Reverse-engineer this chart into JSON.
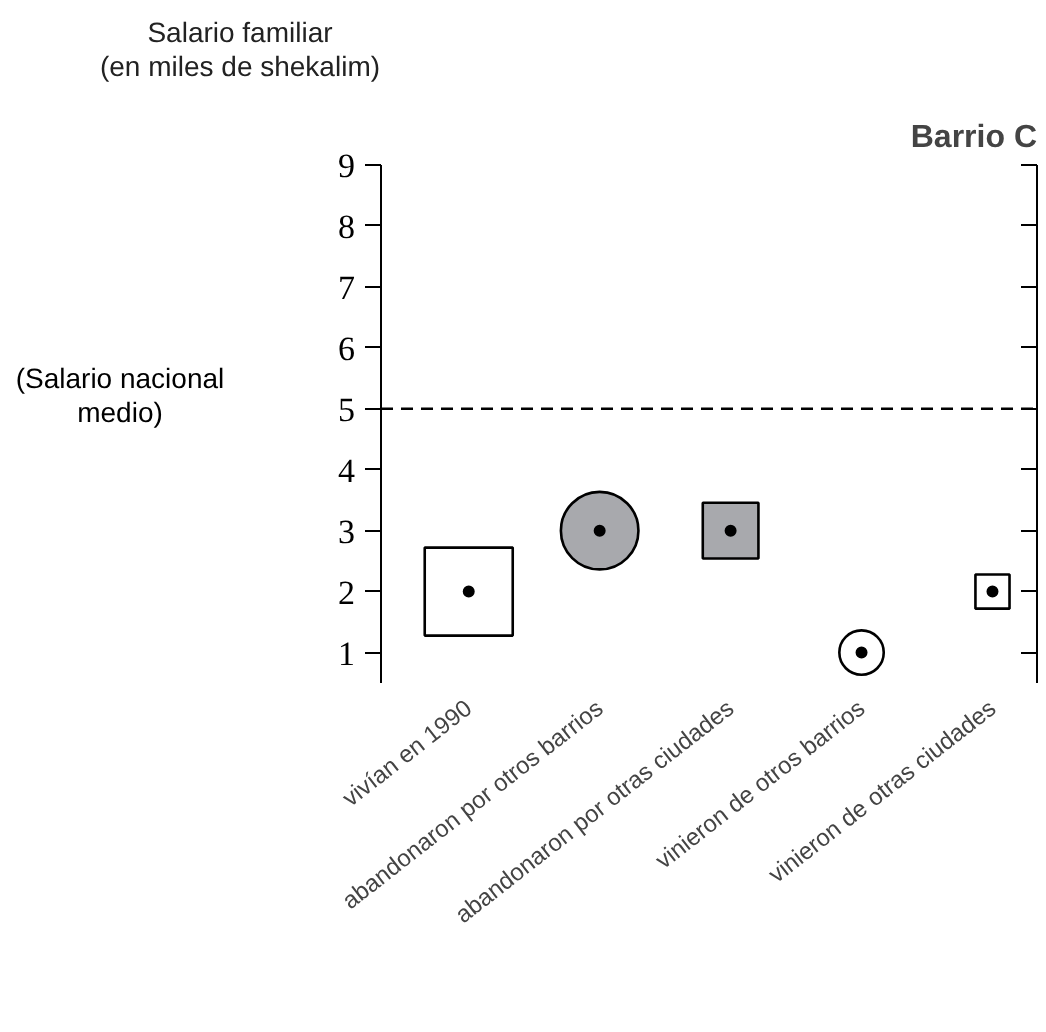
{
  "chart_data": {
    "type": "bubble",
    "title": "Barrio C",
    "ylabel": "Salario familiar\n(en miles de shekalim)",
    "categories": [
      "vivían en 1990",
      "abandonaron por otros barrios",
      "abandonaron por otras ciudades",
      "vinieron de otros barrios",
      "vinieron de otras ciudades"
    ],
    "series": [
      {
        "colors": [
          "#ffffff",
          null,
          "#a8a9ad",
          null,
          "#ffffff"
        ],
        "marker": "square",
        "values": [
          2,
          null,
          3,
          null,
          2
        ],
        "sizes": [
          1,
          null,
          0.4,
          null,
          0.15
        ]
      },
      {
        "colors": [
          null,
          "#a8a9ad",
          null,
          "#ffffff",
          null
        ],
        "marker": "circle",
        "values": [
          null,
          3,
          null,
          1,
          null
        ],
        "sizes": [
          null,
          0.61,
          null,
          0.2,
          null
        ]
      },
      {
        "type": "scatter",
        "color": "#000000",
        "marker": "circle",
        "values": [
          2,
          3,
          3,
          1,
          2
        ]
      }
    ],
    "ylim": [
      0.5,
      9
    ],
    "yticks": [
      1,
      2,
      3,
      4,
      5,
      6,
      7,
      8,
      9
    ],
    "ref_lines": [
      {
        "axis": "y",
        "value": 5,
        "label": "(Salario nacional\nmedio)",
        "line_style": "dashed"
      }
    ],
    "grid": false
  }
}
